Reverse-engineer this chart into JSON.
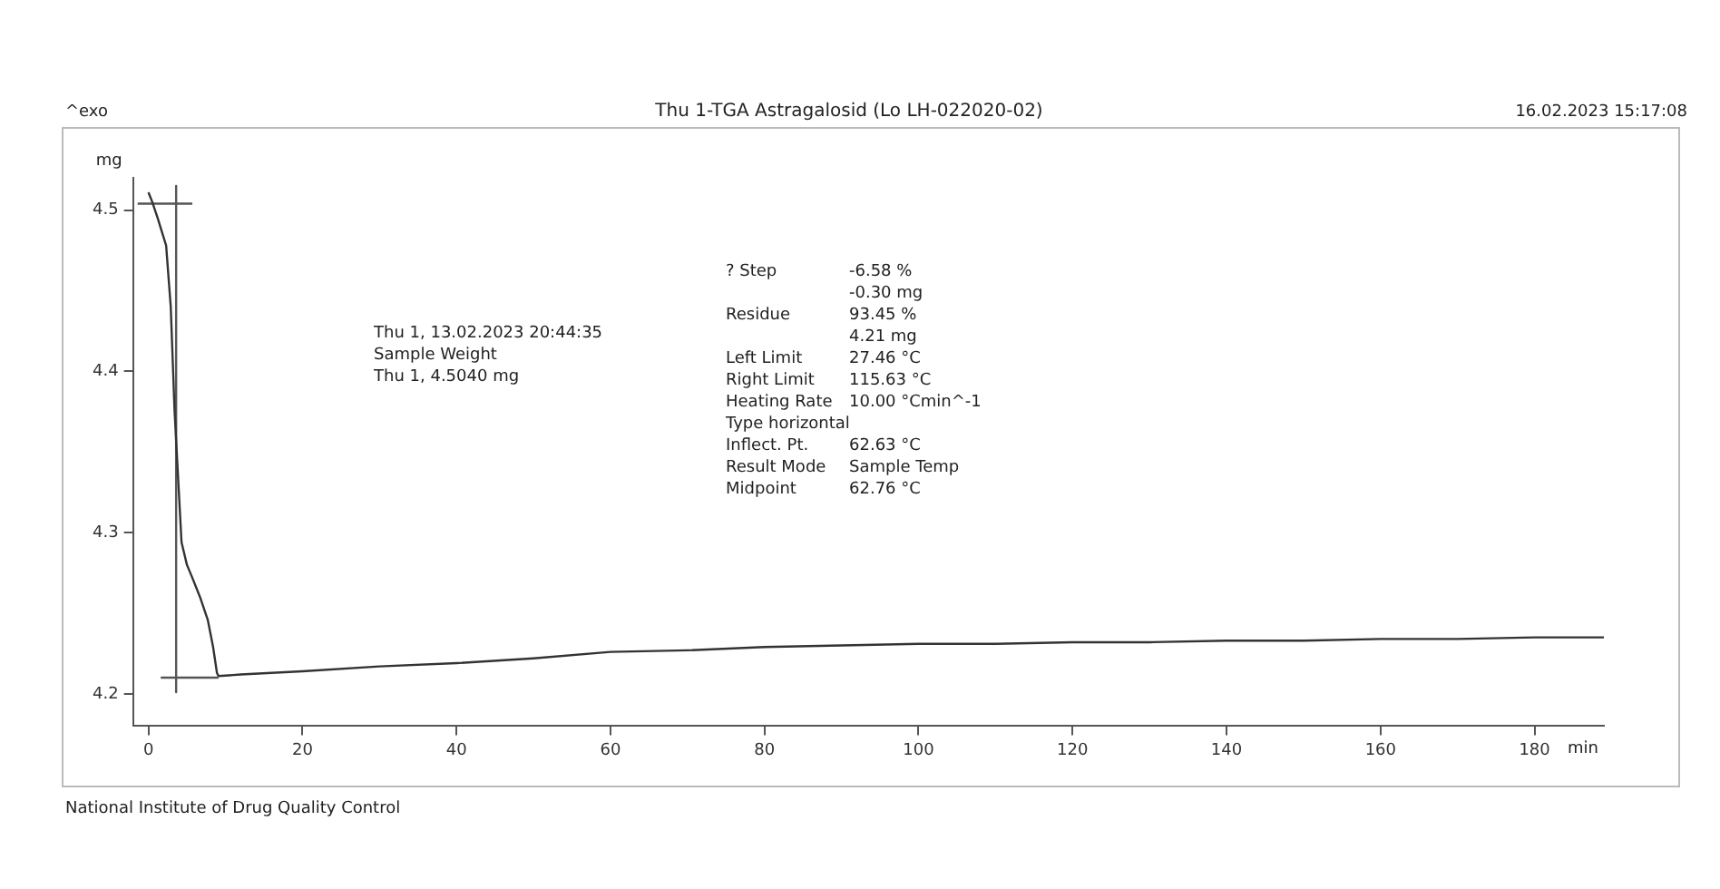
{
  "chart_data": {
    "type": "line",
    "title": "Thu 1-TGA Astragalosid (Lo LH-022020-02)",
    "xlabel": "min",
    "ylabel": "mg",
    "annotations": [
      "^exo",
      "16.02.2023 15:17:08",
      "Thu 1, 13.02.2023 20:44:35\nSample Weight\nThu 1, 4.5040 mg",
      "? Step\t-6.58 %\n\t-0.30 mg\nResidue\t93.45 %\n\t4.21 mg\nLeft Limit\t27.46 °C\nRight Limit\t115.63 °C\nHeating Rate\t10.00 °Cmin^-1\nType horizontal\nInflect. Pt.\t62.63 °C\nResult Mode\tSample Temp\nMidpoint\t62.76 °C",
      "National Institute of Drug Quality Control"
    ],
    "series": [
      {
        "color": "#333333",
        "x": [
          0,
          0.5,
          1.2,
          2.3,
          2.9,
          3.4,
          3.9,
          4.3,
          5.0,
          5.7,
          6.7,
          7.7,
          8.4,
          8.9,
          9.1,
          12,
          16,
          20,
          30,
          40,
          50,
          60,
          70,
          80,
          90,
          100,
          110,
          120,
          130,
          140,
          150,
          160,
          170,
          180,
          189
        ],
        "values": [
          4.511,
          4.505,
          4.495,
          4.478,
          4.44,
          4.375,
          4.33,
          4.294,
          4.28,
          4.272,
          4.26,
          4.246,
          4.229,
          4.213,
          4.211,
          4.212,
          4.213,
          4.214,
          4.217,
          4.219,
          4.222,
          4.226,
          4.227,
          4.229,
          4.23,
          4.231,
          4.231,
          4.232,
          4.232,
          4.233,
          4.233,
          4.234,
          4.234,
          4.235,
          4.235
        ]
      },
      {
        "color": "#555555",
        "x": [
          -1.4,
          5.7
        ],
        "values": [
          4.504,
          4.504
        ]
      },
      {
        "color": "#555555",
        "x": [
          1.6,
          9.1
        ],
        "values": [
          4.21,
          4.21
        ]
      },
      {
        "color": "#555555",
        "x": [
          3.6,
          3.6
        ],
        "values": [
          4.515,
          4.201
        ]
      }
    ],
    "xlim": [
      -2,
      189
    ],
    "xticks": [
      0,
      20,
      40,
      60,
      80,
      100,
      120,
      140,
      160,
      180
    ],
    "ylim": [
      4.18,
      4.52
    ],
    "yticks": [
      4.2,
      4.3,
      4.4,
      4.5
    ],
    "grid": false,
    "legend": false,
    "marker": "none",
    "line_style": "solid"
  }
}
